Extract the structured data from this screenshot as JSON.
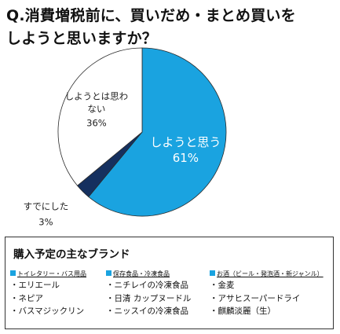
{
  "title_line1": "Q.消費増税前に、買いだめ・まとめ買いを",
  "title_line2": "しようと思いますか？",
  "chart_data": {
    "type": "pie",
    "slices": [
      {
        "label": "しようと思う",
        "value": 61,
        "value_label": "61%",
        "color": "#1aa3e0"
      },
      {
        "label": "すでにした",
        "value": 3,
        "value_label": "3%",
        "color": "#15305f"
      },
      {
        "label": "しようとは思わない",
        "label_lines": [
          "しようとは思わ",
          "ない"
        ],
        "value": 36,
        "value_label": "36%",
        "color": "#ffffff"
      }
    ]
  },
  "brands": {
    "title": "購入予定の主なブランド",
    "columns": [
      {
        "category": "トイレタリー・バス用品",
        "items": [
          "・エリエール",
          "・ネピア",
          "・バスマジックリン"
        ]
      },
      {
        "category": "保存食品・冷凍食品",
        "items": [
          "・ニチレイの冷凍食品",
          "・日清 カップヌードル",
          "・ニッスイの冷凍食品"
        ]
      },
      {
        "category": "お酒（ビール・発泡酒・新ジャンル）",
        "items": [
          "・金麦",
          "・アサヒスーパードライ",
          "・麒麟淡麗（生）"
        ]
      }
    ]
  }
}
